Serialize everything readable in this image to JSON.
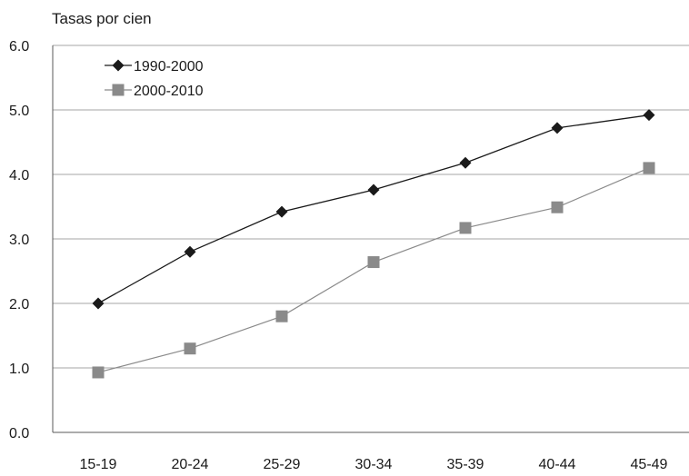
{
  "chart_data": {
    "type": "line",
    "title": "",
    "xlabel": "",
    "ylabel": "Tasas por cien",
    "ylim": [
      0,
      6
    ],
    "yticks": [
      "0.0",
      "1.0",
      "2.0",
      "3.0",
      "4.0",
      "5.0",
      "6.0"
    ],
    "grid": true,
    "legend_position": "top-left",
    "categories": [
      "15-19",
      "20-24",
      "25-29",
      "30-34",
      "35-39",
      "40-44",
      "45-49"
    ],
    "series": [
      {
        "name": "1990-2000",
        "values": [
          2.0,
          2.8,
          3.42,
          3.76,
          4.18,
          4.72,
          4.92
        ],
        "color": "#1a1a1a",
        "marker": "diamond"
      },
      {
        "name": "2000-2010",
        "values": [
          0.93,
          1.3,
          1.8,
          2.64,
          3.17,
          3.49,
          4.1
        ],
        "color": "#8a8a8a",
        "marker": "square"
      }
    ]
  }
}
